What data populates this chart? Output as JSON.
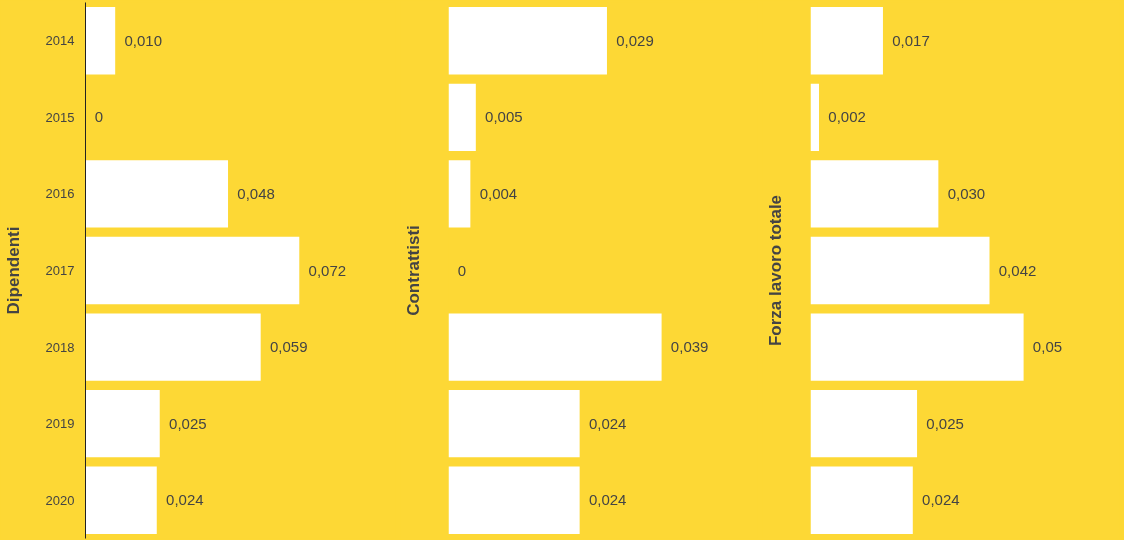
{
  "chart_data": [
    {
      "type": "bar",
      "orientation": "horizontal",
      "ylabel": "Dipendenti",
      "categories": [
        "2014",
        "2015",
        "2016",
        "2017",
        "2018",
        "2019",
        "2020"
      ],
      "values": [
        0.01,
        0,
        0.048,
        0.072,
        0.059,
        0.025,
        0.024
      ],
      "value_labels": [
        "0,010",
        "0",
        "0,048",
        "0,072",
        "0,059",
        "0,025",
        "0,024"
      ],
      "color": "#ffffff",
      "tick_labels": "y"
    },
    {
      "type": "bar",
      "orientation": "horizontal",
      "ylabel": "Contrattisti",
      "categories": [
        "2014",
        "2015",
        "2016",
        "2017",
        "2018",
        "2019",
        "2020"
      ],
      "values": [
        0.029,
        0.005,
        0.004,
        0,
        0.039,
        0.024,
        0.024
      ],
      "value_labels": [
        "0,029",
        "0,005",
        "0,004",
        "0",
        "0,039",
        "0,024",
        "0,024"
      ],
      "color": "#ffffff",
      "tick_labels": false
    },
    {
      "type": "bar",
      "orientation": "horizontal",
      "ylabel": "Forza lavoro totale",
      "categories": [
        "2014",
        "2015",
        "2016",
        "2017",
        "2018",
        "2019",
        "2020"
      ],
      "values": [
        0.017,
        0.002,
        0.03,
        0.042,
        0.05,
        0.025,
        0.024
      ],
      "value_labels": [
        "0,017",
        "0,002",
        "0,030",
        "0,042",
        "0,05",
        "0,025",
        "0,024"
      ],
      "color": "#ffffff",
      "tick_labels": false
    }
  ]
}
